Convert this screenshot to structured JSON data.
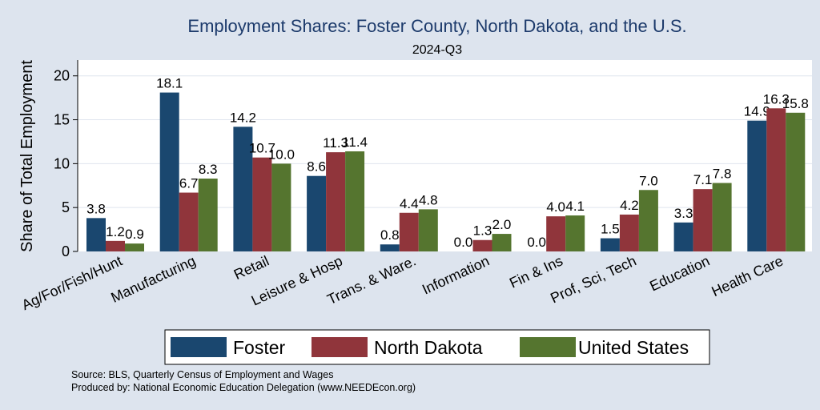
{
  "chart_data": {
    "type": "bar",
    "title": "Employment Shares: Foster County, North Dakota, and the U.S.",
    "subtitle": "2024-Q3",
    "xlabel": "",
    "ylabel": "Share of Total Employment",
    "ylim": [
      0,
      21.8
    ],
    "yticks": [
      0,
      5,
      10,
      15,
      20
    ],
    "grid": true,
    "legend_position": "bottom",
    "categories": [
      "Ag/For/Fish/Hunt",
      "Manufacturing",
      "Retail",
      "Leisure & Hosp",
      "Trans. & Ware.",
      "Information",
      "Fin & Ins",
      "Prof, Sci, Tech",
      "Education",
      "Health Care"
    ],
    "series": [
      {
        "name": "Foster",
        "color": "#1a476f",
        "values": [
          3.8,
          18.1,
          14.2,
          8.6,
          0.8,
          0.0,
          0.0,
          1.5,
          3.3,
          14.9
        ]
      },
      {
        "name": "North Dakota",
        "color": "#90353b",
        "values": [
          1.2,
          6.7,
          10.7,
          11.3,
          4.4,
          1.3,
          4.0,
          4.2,
          7.1,
          16.3
        ]
      },
      {
        "name": "United States",
        "color": "#55752f",
        "values": [
          0.9,
          8.3,
          10.0,
          11.4,
          4.8,
          2.0,
          4.1,
          7.0,
          7.8,
          15.8
        ]
      }
    ],
    "notes": [
      "Source: BLS, Quarterly Census of Employment and Wages",
      "Produced by: National Economic Education Delegation (www.NEEDEcon.org)"
    ]
  }
}
